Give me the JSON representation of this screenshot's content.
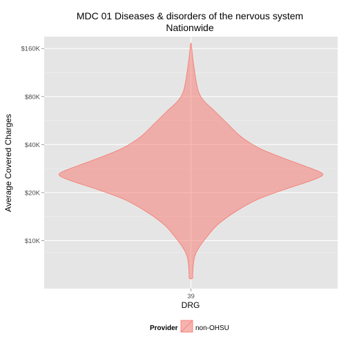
{
  "chart_data": {
    "type": "violin",
    "title": "MDC 01 Diseases & disorders of the nervous system",
    "subtitle": "Nationwide",
    "xlabel": "DRG",
    "ylabel": "Average Covered Charges",
    "categories": [
      "39"
    ],
    "y_scale": "log10",
    "ylim": [
      5000,
      190000
    ],
    "yticks": [
      {
        "value": 10000,
        "label": "$10K"
      },
      {
        "value": 20000,
        "label": "$20K"
      },
      {
        "value": 40000,
        "label": "$40K"
      },
      {
        "value": 80000,
        "label": "$80K"
      },
      {
        "value": 160000,
        "label": "$160K"
      }
    ],
    "grid": true,
    "legend": {
      "title": "Provider",
      "position": "bottom",
      "entries": [
        "non-OHSU"
      ]
    },
    "series": [
      {
        "name": "non-OHSU",
        "category": "39",
        "color": "#F8766D",
        "fill_opacity": 0.5,
        "density_profile": [
          {
            "y": 5800,
            "w": 0.012
          },
          {
            "y": 6200,
            "w": 0.014
          },
          {
            "y": 7000,
            "w": 0.018
          },
          {
            "y": 8000,
            "w": 0.03
          },
          {
            "y": 9000,
            "w": 0.06
          },
          {
            "y": 10500,
            "w": 0.12
          },
          {
            "y": 12500,
            "w": 0.2
          },
          {
            "y": 15000,
            "w": 0.33
          },
          {
            "y": 18000,
            "w": 0.5
          },
          {
            "y": 21000,
            "w": 0.72
          },
          {
            "y": 23500,
            "w": 0.9
          },
          {
            "y": 25500,
            "w": 1.0
          },
          {
            "y": 27000,
            "w": 0.98
          },
          {
            "y": 29500,
            "w": 0.86
          },
          {
            "y": 33000,
            "w": 0.7
          },
          {
            "y": 38000,
            "w": 0.52
          },
          {
            "y": 45000,
            "w": 0.38
          },
          {
            "y": 55000,
            "w": 0.27
          },
          {
            "y": 65000,
            "w": 0.18
          },
          {
            "y": 75000,
            "w": 0.1
          },
          {
            "y": 85000,
            "w": 0.06
          },
          {
            "y": 100000,
            "w": 0.04
          },
          {
            "y": 120000,
            "w": 0.025
          },
          {
            "y": 145000,
            "w": 0.012
          },
          {
            "y": 170000,
            "w": 0.003
          }
        ]
      }
    ]
  }
}
